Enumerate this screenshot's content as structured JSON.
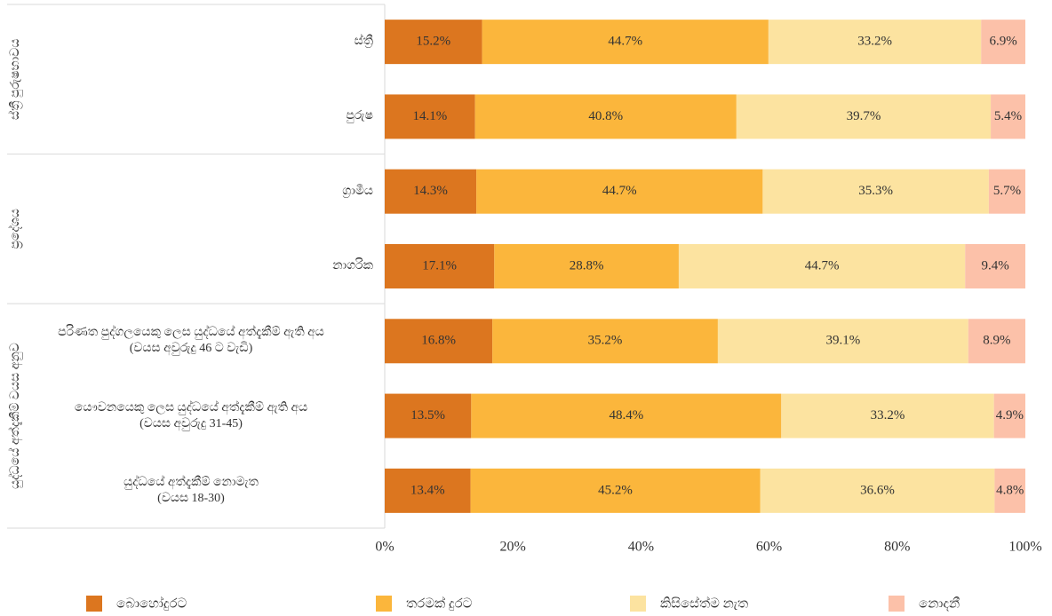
{
  "chart_data": {
    "type": "stacked-barh",
    "categories": [
      "ස්ත්‍රී",
      "පුරුෂ",
      "ග්‍රාමීය",
      "නාගරික",
      "පරිණත පුද්ගලයෙකු ලෙස යුද්ධයේ අත්දැකීම් ඇති අය\n(වයස අවුරුදු 46 ට වැඩි)",
      "යෞවනයෙකු ලෙස යුද්ධයේ අත්දැකීම් ඇති අය\n(වයස අවුරුදු 31-45)",
      "යුද්ධයේ අත්දැකීම් නොමැත\n(වයස 18-30)"
    ],
    "groups": [
      {
        "name": "ස්ත්‍රී පුරුෂභාවය",
        "count": 2
      },
      {
        "name": "ප්‍රදේශය",
        "count": 2
      },
      {
        "name": "යුද්ධයේ අත්දැකීම් වයස අනුව",
        "count": 3
      }
    ],
    "series": [
      {
        "name": "බොහෝදුරට",
        "color": "#dc761f",
        "values": [
          15.2,
          14.1,
          14.3,
          17.1,
          16.8,
          13.5,
          13.4
        ],
        "value_labels": [
          "15.2%",
          "14.1%",
          "14.3%",
          "17.1%",
          "16.8%",
          "13.5%",
          "13.4%"
        ]
      },
      {
        "name": "තරමක් දුරට",
        "color": "#fbb63c",
        "values": [
          44.7,
          40.8,
          44.7,
          28.8,
          35.2,
          48.4,
          45.2
        ],
        "value_labels": [
          "44.7%",
          "40.8%",
          "44.7%",
          "28.8%",
          "35.2%",
          "48.4%",
          "45.2%"
        ]
      },
      {
        "name": "කිසිසේත්ම නැත",
        "color": "#fce3a0",
        "values": [
          33.2,
          39.7,
          35.3,
          44.7,
          39.1,
          33.2,
          36.6
        ],
        "value_labels": [
          "33.2%",
          "39.7%",
          "35.3%",
          "44.7%",
          "39.1%",
          "33.2%",
          "36.6%"
        ]
      },
      {
        "name": "නොදනී",
        "color": "#fcc1a9",
        "values": [
          6.9,
          5.4,
          5.7,
          9.4,
          8.9,
          4.9,
          4.8
        ],
        "value_labels": [
          "6.9%",
          "5.4%",
          "5.7%",
          "9.4%",
          "8.9%",
          "4.9%",
          "4.8%"
        ]
      }
    ],
    "xlim": [
      0,
      100
    ],
    "xticks": [
      {
        "value": 0,
        "label": "0%"
      },
      {
        "value": 20,
        "label": "20%"
      },
      {
        "value": 40,
        "label": "40%"
      },
      {
        "value": 60,
        "label": "60%"
      },
      {
        "value": 80,
        "label": "80%"
      },
      {
        "value": 100,
        "label": "100%"
      }
    ],
    "legend": "bottom"
  }
}
